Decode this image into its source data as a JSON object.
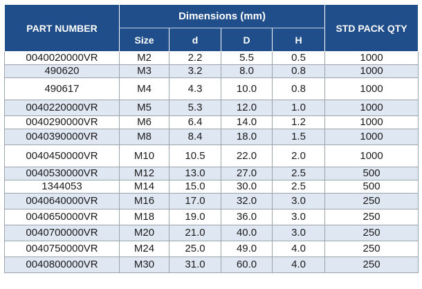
{
  "header": {
    "part_number": "PART NUMBER",
    "dimensions_group": "Dimensions (mm)",
    "std_pack_qty": "STD PACK QTY",
    "columns": [
      "Size",
      "d",
      "D",
      "H"
    ]
  },
  "rows": [
    {
      "part": "0040020000VR",
      "size": "M2",
      "d": "2.2",
      "D": "5.5",
      "H": "0.5",
      "qty": "1000"
    },
    {
      "part": "490620",
      "size": "M3",
      "d": "3.2",
      "D": "8.0",
      "H": "0.8",
      "qty": "1000"
    },
    {
      "part": "490617",
      "size": "M4",
      "d": "4.3",
      "D": "10.0",
      "H": "0.8",
      "qty": "1000"
    },
    {
      "part": "0040220000VR",
      "size": "M5",
      "d": "5.3",
      "D": "12.0",
      "H": "1.0",
      "qty": "1000"
    },
    {
      "part": "0040290000VR",
      "size": "M6",
      "d": "6.4",
      "D": "14.0",
      "H": "1.2",
      "qty": "1000"
    },
    {
      "part": "0040390000VR",
      "size": "M8",
      "d": "8.4",
      "D": "18.0",
      "H": "1.5",
      "qty": "1000"
    },
    {
      "part": "0040450000VR",
      "size": "M10",
      "d": "10.5",
      "D": "22.0",
      "H": "2.0",
      "qty": "1000"
    },
    {
      "part": "0040530000VR",
      "size": "M12",
      "d": "13.0",
      "D": "27.0",
      "H": "2.5",
      "qty": "500"
    },
    {
      "part": "1344053",
      "size": "M14",
      "d": "15.0",
      "D": "30.0",
      "H": "2.5",
      "qty": "500"
    },
    {
      "part": "0040640000VR",
      "size": "M16",
      "d": "17.0",
      "D": "32.0",
      "H": "3.0",
      "qty": "250"
    },
    {
      "part": "0040650000VR",
      "size": "M18",
      "d": "19.0",
      "D": "36.0",
      "H": "3.0",
      "qty": "250"
    },
    {
      "part": "0040700000VR",
      "size": "M20",
      "d": "21.0",
      "D": "40.0",
      "H": "3.0",
      "qty": "250"
    },
    {
      "part": "0040750000VR",
      "size": "M24",
      "d": "25.0",
      "D": "49.0",
      "H": "4.0",
      "qty": "250"
    },
    {
      "part": "0040800000VR",
      "size": "M30",
      "d": "31.0",
      "D": "60.0",
      "H": "4.0",
      "qty": "250"
    }
  ],
  "colors": {
    "header_bg": "#1f4e8a",
    "header_text": "#ffffff",
    "stripe": "#dfe7f2"
  }
}
